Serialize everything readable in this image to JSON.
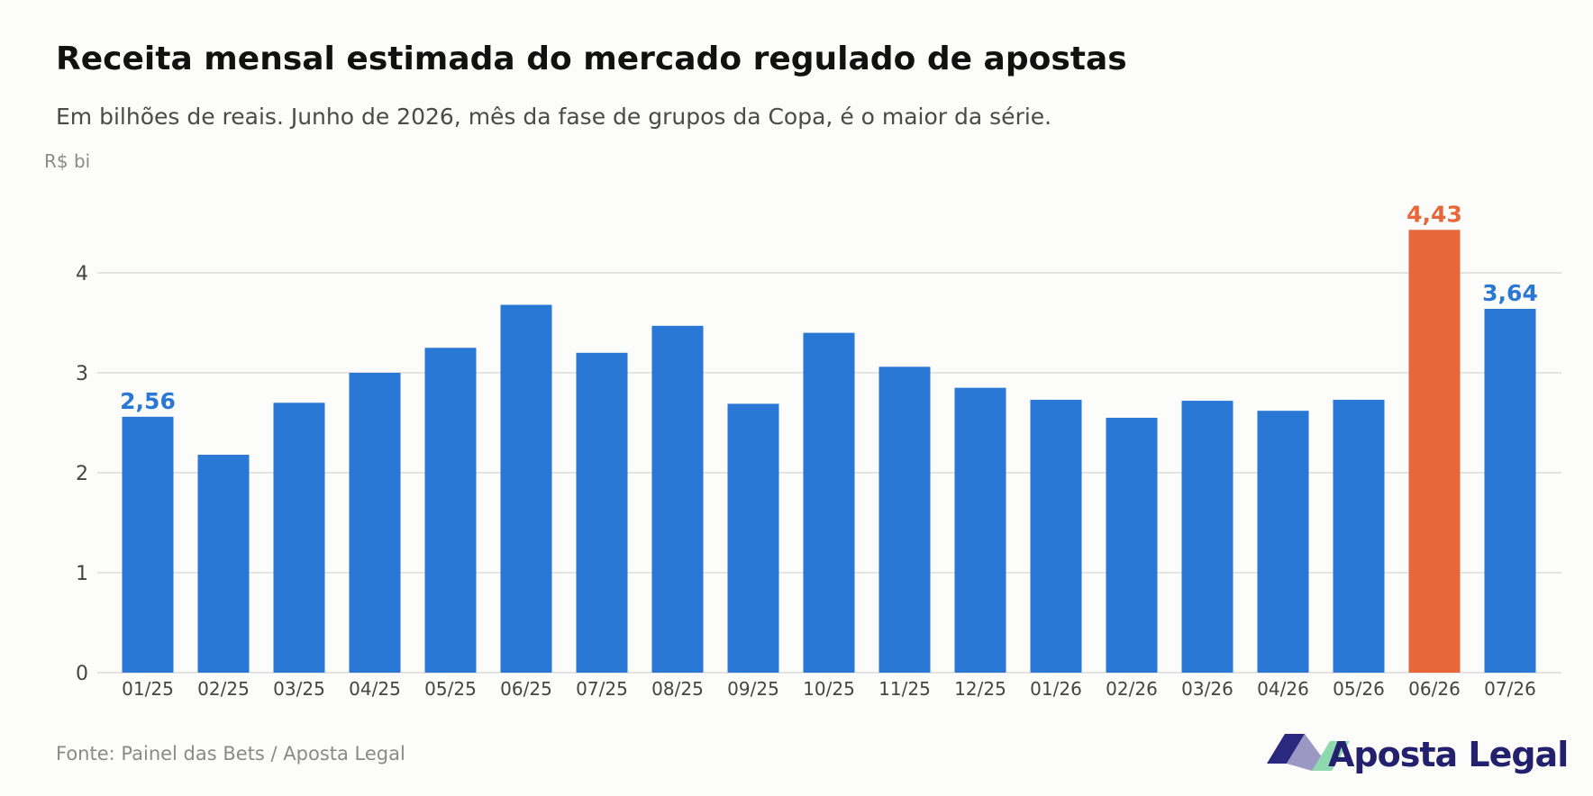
{
  "title": "Receita mensal estimada do mercado regulado de apostas",
  "subtitle": "Em bilhões de reais. Junho de 2026, mês da fase de grupos da Copa, é o maior da série.",
  "source": "Fonte: Painel das Bets / Aposta Legal",
  "logo": {
    "name": "Aposta Legal",
    "icon": "aposta-legal-logo-icon"
  },
  "colors": {
    "bar": "#2a78d6",
    "highlight": "#e8673a",
    "background": "#fcfcfa"
  },
  "chart_data": {
    "type": "bar",
    "title": "Receita mensal estimada do mercado regulado de apostas",
    "subtitle": "Em bilhões de reais. Junho de 2026, mês da fase de grupos da Copa, é o maior da série.",
    "ylabel": "R$ bi",
    "xlabel": "",
    "ylim": [
      0,
      4.6
    ],
    "yticks": [
      0,
      1,
      2,
      3,
      4
    ],
    "grid": "horizontal",
    "legend": "none",
    "categories": [
      "01/25",
      "02/25",
      "03/25",
      "04/25",
      "05/25",
      "06/25",
      "07/25",
      "08/25",
      "09/25",
      "10/25",
      "11/25",
      "12/25",
      "01/26",
      "02/26",
      "03/26",
      "04/26",
      "05/26",
      "06/26",
      "07/26"
    ],
    "values": [
      2.56,
      2.18,
      2.7,
      3.0,
      3.25,
      3.68,
      3.2,
      3.47,
      2.69,
      3.4,
      3.06,
      2.85,
      2.73,
      2.55,
      2.72,
      2.62,
      2.73,
      4.43,
      3.64
    ],
    "highlight_index": 17,
    "data_labels": [
      {
        "index": 0,
        "text": "2,56"
      },
      {
        "index": 17,
        "text": "4,43"
      },
      {
        "index": 18,
        "text": "3,64"
      }
    ]
  }
}
